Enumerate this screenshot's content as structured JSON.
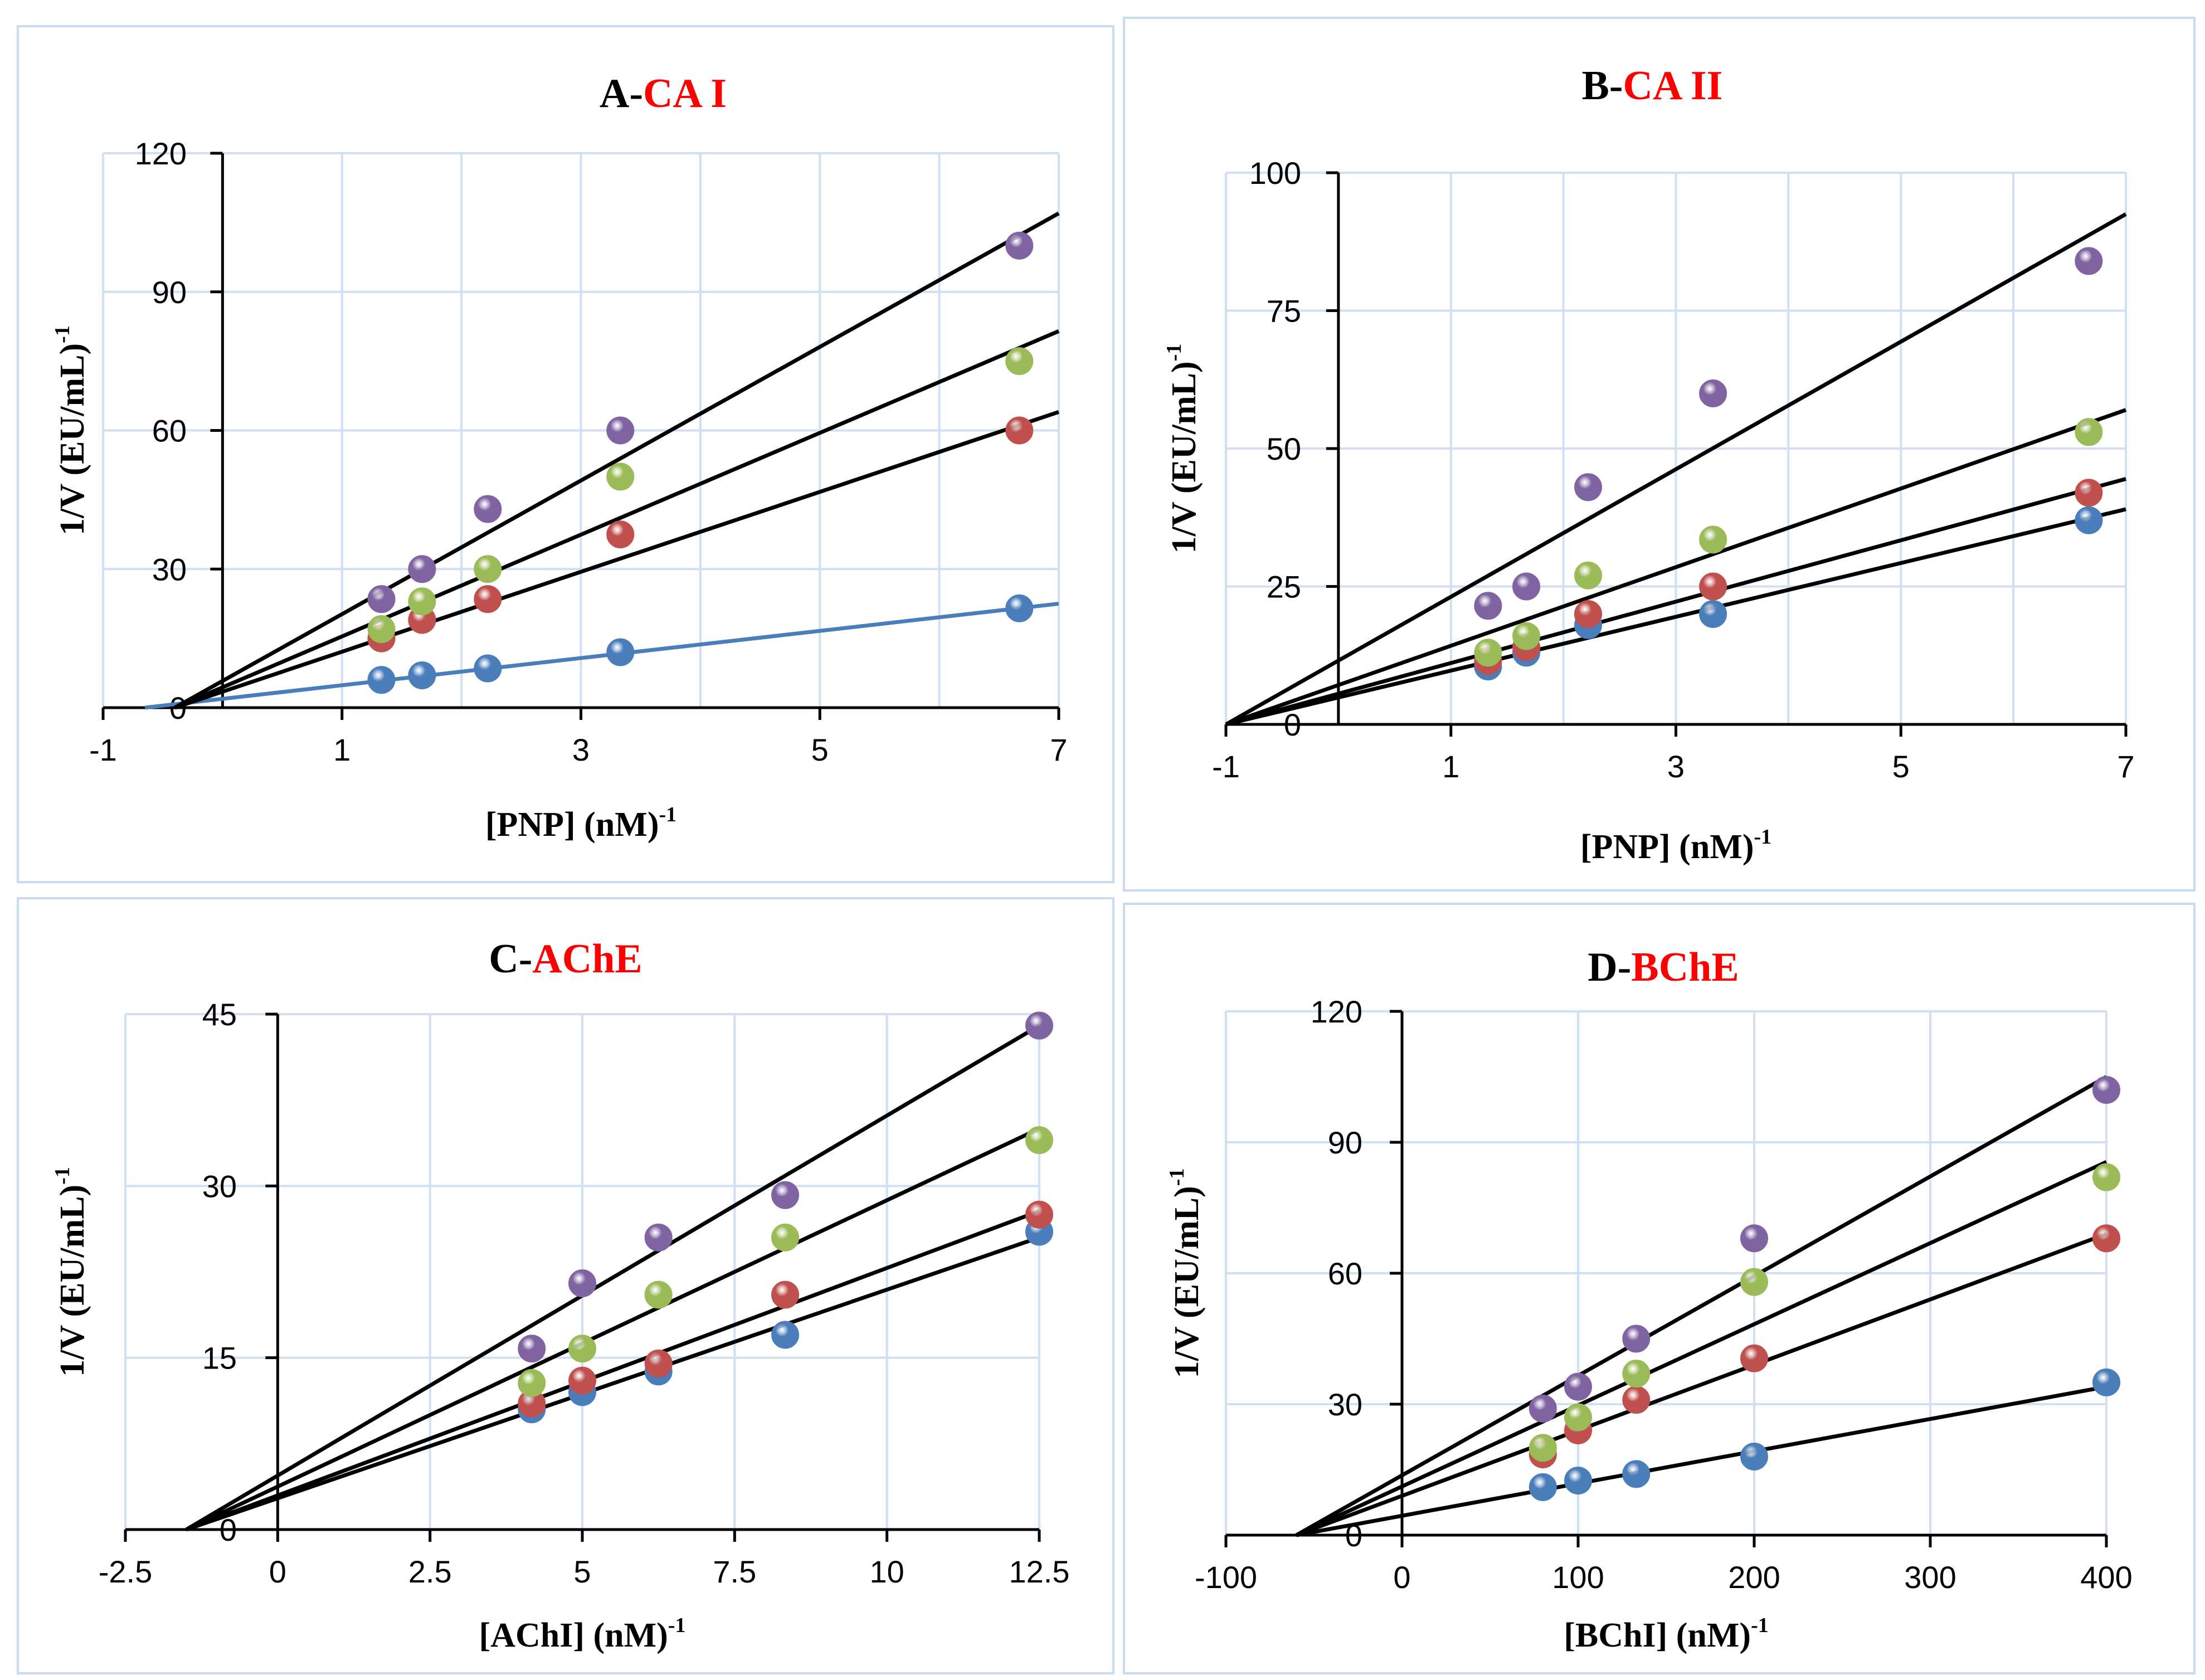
{
  "chart_data": [
    {
      "id": "A",
      "type": "scatter",
      "title_prefix": "A-",
      "title_highlight": "CA I",
      "xlabel": "[PNP] (nM)",
      "xlabel_sup": "-1",
      "ylabel": "1/V (EU/mL)",
      "ylabel_sup": "-1",
      "xlim": [
        -1,
        7
      ],
      "ylim": [
        0,
        120
      ],
      "xticks": [
        -1,
        1,
        3,
        5,
        7
      ],
      "xtick_labels": [
        "-1",
        "1",
        "3",
        "5",
        "7"
      ],
      "xgrid": [
        1,
        2,
        3,
        4,
        5,
        6
      ],
      "yticks": [
        0,
        30,
        60,
        90,
        120
      ],
      "ytick_labels": [
        "0",
        "30",
        "60",
        "90",
        "120"
      ],
      "grid": true,
      "series": [
        {
          "color": "#4a7ebb",
          "line_color": "#4a7ebb",
          "x": [
            1.33,
            1.67,
            2.22,
            3.33,
            6.67
          ],
          "y": [
            6,
            7,
            8.5,
            12,
            21.5
          ],
          "fit": [
            [
              -0.65,
              0
            ],
            [
              7,
              22.5
            ]
          ]
        },
        {
          "color": "#c0504d",
          "line_color": "#000000",
          "x": [
            1.33,
            1.67,
            2.22,
            3.33,
            6.67
          ],
          "y": [
            15,
            19,
            23.5,
            37.5,
            60
          ],
          "fit": [
            [
              -0.4,
              0
            ],
            [
              7,
              64
            ]
          ]
        },
        {
          "color": "#9bbb59",
          "line_color": "#000000",
          "x": [
            1.33,
            1.67,
            2.22,
            3.33,
            6.67
          ],
          "y": [
            17,
            23,
            30,
            50,
            75
          ],
          "fit": [
            [
              -0.4,
              0
            ],
            [
              7,
              81.5
            ]
          ]
        },
        {
          "color": "#8064a2",
          "line_color": "#000000",
          "x": [
            1.33,
            1.67,
            2.22,
            3.33,
            6.67
          ],
          "y": [
            23.5,
            30,
            43,
            60,
            100
          ],
          "fit": [
            [
              -0.4,
              0
            ],
            [
              7,
              107
            ]
          ]
        }
      ]
    },
    {
      "id": "B",
      "type": "scatter",
      "title_prefix": "B-",
      "title_highlight": "CA II",
      "xlabel": "[PNP] (nM)",
      "xlabel_sup": "-1",
      "ylabel": "1/V (EU/mL)",
      "ylabel_sup": "-1",
      "xlim": [
        -1,
        7
      ],
      "ylim": [
        0,
        100
      ],
      "xticks": [
        -1,
        1,
        3,
        5,
        7
      ],
      "xtick_labels": [
        "-1",
        "1",
        "3",
        "5",
        "7"
      ],
      "xgrid": [
        1,
        2,
        3,
        4,
        5,
        6
      ],
      "yticks": [
        0,
        25,
        50,
        75,
        100
      ],
      "ytick_labels": [
        "0",
        "25",
        "50",
        "75",
        "100"
      ],
      "grid": true,
      "series": [
        {
          "color": "#4a7ebb",
          "line_color": "#000000",
          "x": [
            1.33,
            1.67,
            2.22,
            3.33,
            6.67
          ],
          "y": [
            10.5,
            13,
            18,
            20,
            37
          ],
          "fit": [
            [
              -1,
              0
            ],
            [
              7,
              39
            ]
          ]
        },
        {
          "color": "#c0504d",
          "line_color": "#000000",
          "x": [
            1.33,
            1.67,
            2.22,
            3.33,
            6.67
          ],
          "y": [
            11.5,
            14,
            20,
            25,
            42
          ],
          "fit": [
            [
              -1,
              0
            ],
            [
              7,
              44.5
            ]
          ]
        },
        {
          "color": "#9bbb59",
          "line_color": "#000000",
          "x": [
            1.33,
            1.67,
            2.22,
            3.33,
            6.67
          ],
          "y": [
            13,
            16,
            27,
            33.5,
            53
          ],
          "fit": [
            [
              -1,
              0
            ],
            [
              7,
              57
            ]
          ]
        },
        {
          "color": "#8064a2",
          "line_color": "#000000",
          "x": [
            1.33,
            1.67,
            2.22,
            3.33,
            6.67
          ],
          "y": [
            21.5,
            25,
            43,
            60,
            84
          ],
          "fit": [
            [
              -1,
              0
            ],
            [
              7,
              92.5
            ]
          ]
        }
      ]
    },
    {
      "id": "C",
      "type": "scatter",
      "title_prefix": "C-",
      "title_highlight": "AChE",
      "xlabel": "[AChI] (nM)",
      "xlabel_sup": "-1",
      "ylabel": "1/V (EU/mL)",
      "ylabel_sup": "-1",
      "xlim": [
        -2.5,
        12.5
      ],
      "ylim": [
        0,
        45
      ],
      "xticks": [
        -2.5,
        0,
        2.5,
        5,
        7.5,
        10,
        12.5
      ],
      "xtick_labels": [
        "-2.5",
        "0",
        "2.5",
        "5",
        "7.5",
        "10",
        "12.5"
      ],
      "xgrid": [
        2.5,
        5,
        7.5,
        10
      ],
      "yticks": [
        0,
        15,
        30,
        45
      ],
      "ytick_labels": [
        "0",
        "15",
        "30",
        "45"
      ],
      "grid": true,
      "series": [
        {
          "color": "#4a7ebb",
          "line_color": "#000000",
          "x": [
            4.17,
            5,
            6.25,
            8.33,
            12.5
          ],
          "y": [
            10.5,
            12,
            13.8,
            17,
            26
          ],
          "fit": [
            [
              -1.5,
              0
            ],
            [
              12.5,
              25.5
            ]
          ]
        },
        {
          "color": "#c0504d",
          "line_color": "#000000",
          "x": [
            4.17,
            5,
            6.25,
            8.33,
            12.5
          ],
          "y": [
            11,
            13,
            14.5,
            20.5,
            27.5
          ],
          "fit": [
            [
              -1.5,
              0
            ],
            [
              12.5,
              27.8
            ]
          ]
        },
        {
          "color": "#9bbb59",
          "line_color": "#000000",
          "x": [
            4.17,
            5,
            6.25,
            8.33,
            12.5
          ],
          "y": [
            12.8,
            15.8,
            20.5,
            25.5,
            34
          ],
          "fit": [
            [
              -1.5,
              0
            ],
            [
              12.5,
              35
            ]
          ]
        },
        {
          "color": "#8064a2",
          "line_color": "#000000",
          "x": [
            4.17,
            5,
            6.25,
            8.33,
            12.5
          ],
          "y": [
            15.8,
            21.5,
            25.5,
            29.2,
            44
          ],
          "fit": [
            [
              -1.5,
              0
            ],
            [
              12.5,
              44
            ]
          ]
        }
      ]
    },
    {
      "id": "D",
      "type": "scatter",
      "title_prefix": "D-",
      "title_highlight": "BChE",
      "xlabel": "[BChI] (nM)",
      "xlabel_sup": "-1",
      "ylabel": "1/V (EU/mL)",
      "ylabel_sup": "-1",
      "xlim": [
        -100,
        400
      ],
      "ylim": [
        0,
        120
      ],
      "xticks": [
        -100,
        0,
        100,
        200,
        300,
        400
      ],
      "xtick_labels": [
        "-100",
        "0",
        "100",
        "200",
        "300",
        "400"
      ],
      "xgrid": [
        100,
        200,
        300
      ],
      "yticks": [
        0,
        30,
        60,
        90,
        120
      ],
      "ytick_labels": [
        "0",
        "30",
        "60",
        "90",
        "120"
      ],
      "grid": true,
      "series": [
        {
          "color": "#4a7ebb",
          "line_color": "#000000",
          "x": [
            80,
            100,
            133,
            200,
            400
          ],
          "y": [
            11,
            12.5,
            14,
            18,
            35
          ],
          "fit": [
            [
              -60,
              0
            ],
            [
              400,
              34
            ]
          ]
        },
        {
          "color": "#c0504d",
          "line_color": "#000000",
          "x": [
            80,
            100,
            133,
            200,
            400
          ],
          "y": [
            18.5,
            24,
            31,
            40.5,
            68
          ],
          "fit": [
            [
              -60,
              0
            ],
            [
              400,
              69
            ]
          ]
        },
        {
          "color": "#9bbb59",
          "line_color": "#000000",
          "x": [
            80,
            100,
            133,
            200,
            400
          ],
          "y": [
            20,
            27,
            37,
            58,
            82
          ],
          "fit": [
            [
              -60,
              0
            ],
            [
              400,
              85.5
            ]
          ]
        },
        {
          "color": "#8064a2",
          "line_color": "#000000",
          "x": [
            80,
            100,
            133,
            200,
            400
          ],
          "y": [
            29,
            34,
            45,
            68,
            102
          ],
          "fit": [
            [
              -60,
              0
            ],
            [
              400,
              105
            ]
          ]
        }
      ]
    }
  ]
}
